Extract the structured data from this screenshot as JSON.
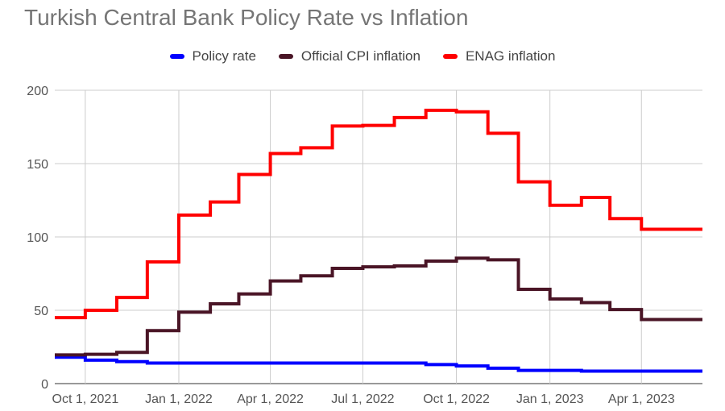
{
  "chart_data": {
    "type": "line",
    "title": "Turkish Central Bank Policy Rate vs Inflation",
    "xlabel": "",
    "ylabel": "",
    "ylim": [
      0,
      200
    ],
    "yticks": [
      0,
      50,
      100,
      150,
      200
    ],
    "xlim": [
      "2021-09-01",
      "2023-05-31"
    ],
    "xticks": [
      {
        "date": "2021-10-01",
        "label": "Oct 1, 2021"
      },
      {
        "date": "2022-01-01",
        "label": "Jan 1, 2022"
      },
      {
        "date": "2022-04-01",
        "label": "Apr 1, 2022"
      },
      {
        "date": "2022-07-01",
        "label": "Jul 1, 2022"
      },
      {
        "date": "2022-10-01",
        "label": "Oct 1, 2022"
      },
      {
        "date": "2023-01-01",
        "label": "Jan 1, 2023"
      },
      {
        "date": "2023-04-01",
        "label": "Apr 1, 2023"
      }
    ],
    "grid": true,
    "legend": "top",
    "x": [
      "2021-09-01",
      "2021-10-01",
      "2021-11-01",
      "2021-12-01",
      "2022-01-01",
      "2022-02-01",
      "2022-03-01",
      "2022-04-01",
      "2022-05-01",
      "2022-06-01",
      "2022-07-01",
      "2022-08-01",
      "2022-09-01",
      "2022-10-01",
      "2022-11-01",
      "2022-12-01",
      "2023-01-01",
      "2023-02-01",
      "2023-03-01",
      "2023-04-01",
      "2023-05-01"
    ],
    "series": [
      {
        "name": "Policy rate",
        "color": "#0000ff",
        "values": [
          18,
          16,
          15,
          14,
          14,
          14,
          14,
          14,
          14,
          14,
          14,
          14,
          13,
          12,
          10.5,
          9,
          9,
          8.5,
          8.5,
          8.5,
          8.5
        ]
      },
      {
        "name": "Official CPI inflation",
        "color": "#4a1526",
        "values": [
          19.6,
          20,
          21.3,
          36.1,
          48.7,
          54.4,
          61.1,
          70,
          73.5,
          78.6,
          79.6,
          80.2,
          83.5,
          85.5,
          84.4,
          64.3,
          57.7,
          55.2,
          50.5,
          43.7,
          43.7
        ]
      },
      {
        "name": "ENAG inflation",
        "color": "#ff0000",
        "values": [
          45,
          50,
          58.7,
          83,
          114.9,
          123.8,
          142.6,
          156.9,
          160.8,
          175.6,
          176,
          181.4,
          186.3,
          185.3,
          170.7,
          137.6,
          121.6,
          126.9,
          112.5,
          105.2,
          105.2
        ]
      }
    ]
  }
}
